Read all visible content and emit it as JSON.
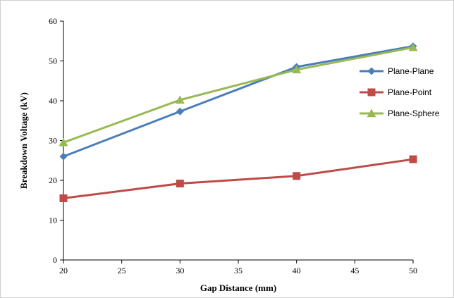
{
  "chart_data": {
    "type": "line",
    "xlabel": "Gap  Distance (mm)",
    "ylabel": "Breakdown  Voltage (kV)",
    "xlim": [
      20,
      50
    ],
    "ylim": [
      0,
      60
    ],
    "xticks": [
      "20",
      "25",
      "30",
      "35",
      "40",
      "45",
      "50"
    ],
    "yticks": [
      "0",
      "10",
      "20",
      "30",
      "40",
      "50",
      "60"
    ],
    "grid": false,
    "legend_position": "right",
    "series": [
      {
        "name": "Plane-Plane",
        "color": "#4a7ebb",
        "marker": "diamond",
        "x": [
          20,
          30,
          40,
          50
        ],
        "y": [
          26.0,
          37.3,
          48.5,
          53.7
        ]
      },
      {
        "name": "Plane-Point",
        "color": "#be4b48",
        "marker": "square",
        "x": [
          20,
          30,
          40,
          50
        ],
        "y": [
          15.5,
          19.2,
          21.1,
          25.3
        ]
      },
      {
        "name": "Plane-Sphere",
        "color": "#98b954",
        "marker": "triangle",
        "x": [
          20,
          30,
          40,
          50
        ],
        "y": [
          29.5,
          40.2,
          47.8,
          53.4
        ]
      }
    ]
  }
}
